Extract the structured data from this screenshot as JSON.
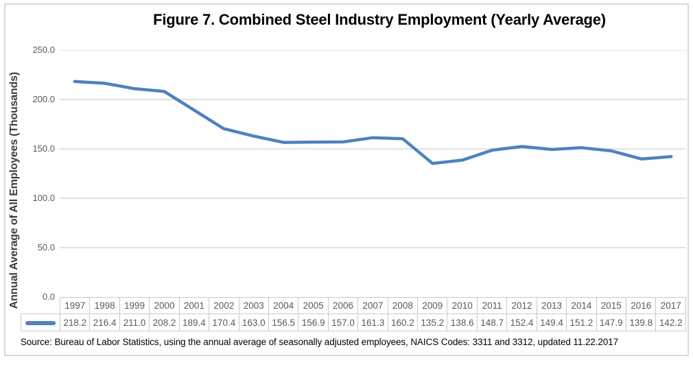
{
  "figure": {
    "title": "Figure 7. Combined Steel Industry Employment (Yearly Average)",
    "y_axis_title": "Annual Average of All Employees (Thousands)",
    "source_note": "Source: Bureau of Labor Statistics, using the annual average of seasonally adjusted employees, NAICS Codes: 3311 and 3312, updated 11.22.2017"
  },
  "chart_data": {
    "type": "line",
    "title": "Figure 7. Combined Steel Industry Employment (Yearly Average)",
    "xlabel": "",
    "ylabel": "Annual Average of All Employees (Thousands)",
    "categories": [
      "1997",
      "1998",
      "1999",
      "2000",
      "2001",
      "2002",
      "2003",
      "2004",
      "2005",
      "2006",
      "2007",
      "2008",
      "2009",
      "2010",
      "2011",
      "2012",
      "2013",
      "2014",
      "2015",
      "2016",
      "2017"
    ],
    "series": [
      {
        "name": "",
        "values": [
          218.2,
          216.4,
          211.0,
          208.2,
          189.4,
          170.4,
          163.0,
          156.5,
          156.9,
          157.0,
          161.3,
          160.2,
          135.2,
          138.6,
          148.7,
          152.4,
          149.4,
          151.2,
          147.9,
          139.8,
          142.2
        ]
      }
    ],
    "ylim": [
      0,
      250
    ],
    "ytick_interval": 50,
    "ytick_labels": [
      "0.0",
      "50.0",
      "100.0",
      "150.0",
      "200.0",
      "250.0"
    ],
    "grid": true,
    "legend_position": "data-table-key",
    "colors": {
      "line": "#4F81BD",
      "gridline": "#D9D9D9",
      "tick_text": "#595959",
      "table_border": "#C9C9C9"
    }
  }
}
